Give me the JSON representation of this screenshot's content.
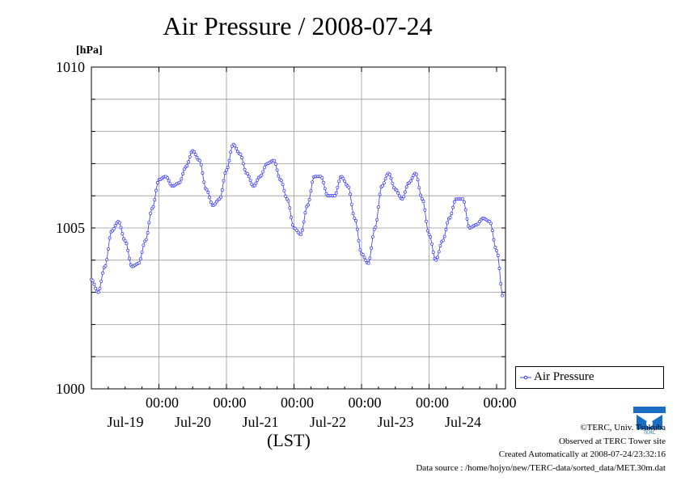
{
  "title": "Air Pressure / 2008-07-24",
  "unit": "[hPa]",
  "xaxis_title": "(LST)",
  "legend": {
    "label": "Air Pressure"
  },
  "credits": [
    "©TERC, Univ. Tsukuba",
    "Observed at TERC Tower site",
    "Created Automatically at 2008-07-24/23:32:16",
    "Data source : /home/hojyo/new/TERC-data/sorted_data/MET.30m.dat"
  ],
  "logo_text": "TERC",
  "colors": {
    "series": "#3333ff",
    "grid": "#999999"
  },
  "chart_data": {
    "type": "line",
    "title": "Air Pressure / 2008-07-24",
    "ylabel": "[hPa]",
    "xlabel": "(LST)",
    "ylim": [
      1000,
      1010
    ],
    "y_ticks": [
      1000,
      1005,
      1010
    ],
    "y_minor_step": 1,
    "xlim_days": [
      0,
      6.1
    ],
    "x_ticks": [
      {
        "time": "00:00",
        "date": "Jul-19"
      },
      {
        "time": "00:00",
        "date": "Jul-20"
      },
      {
        "time": "00:00",
        "date": "Jul-21"
      },
      {
        "time": "00:00",
        "date": "Jul-22"
      },
      {
        "time": "00:00",
        "date": "Jul-23"
      },
      {
        "time": "00:00",
        "date": "Jul-24"
      }
    ],
    "legend_position": "right",
    "grid": true,
    "series": [
      {
        "name": "Air Pressure",
        "x": [
          0.0,
          0.1,
          0.2,
          0.3,
          0.4,
          0.5,
          0.6,
          0.7,
          0.8,
          0.9,
          1.0,
          1.1,
          1.2,
          1.3,
          1.4,
          1.5,
          1.6,
          1.7,
          1.8,
          1.9,
          2.0,
          2.1,
          2.2,
          2.3,
          2.4,
          2.5,
          2.6,
          2.7,
          2.8,
          2.9,
          3.0,
          3.1,
          3.2,
          3.3,
          3.4,
          3.5,
          3.6,
          3.7,
          3.8,
          3.9,
          4.0,
          4.1,
          4.2,
          4.3,
          4.4,
          4.5,
          4.6,
          4.7,
          4.8,
          4.9,
          5.0,
          5.1,
          5.2,
          5.3,
          5.4,
          5.5,
          5.6,
          5.7,
          5.8,
          5.9,
          6.0,
          6.1
        ],
        "y": [
          1003.4,
          1003.0,
          1003.8,
          1004.9,
          1005.2,
          1004.6,
          1003.8,
          1003.9,
          1004.6,
          1005.6,
          1006.5,
          1006.6,
          1006.3,
          1006.4,
          1006.9,
          1007.4,
          1007.1,
          1006.2,
          1005.7,
          1005.9,
          1006.8,
          1007.6,
          1007.3,
          1006.7,
          1006.3,
          1006.6,
          1007.0,
          1007.1,
          1006.5,
          1005.9,
          1005.0,
          1004.8,
          1005.7,
          1006.6,
          1006.6,
          1006.0,
          1006.0,
          1006.6,
          1006.3,
          1005.3,
          1004.2,
          1003.9,
          1005.0,
          1006.3,
          1006.7,
          1006.2,
          1005.9,
          1006.4,
          1006.7,
          1005.9,
          1004.8,
          1004.0,
          1004.6,
          1005.3,
          1005.9,
          1005.9,
          1005.0,
          1005.1,
          1005.3,
          1005.2,
          1004.3,
          1002.8
        ]
      }
    ]
  }
}
